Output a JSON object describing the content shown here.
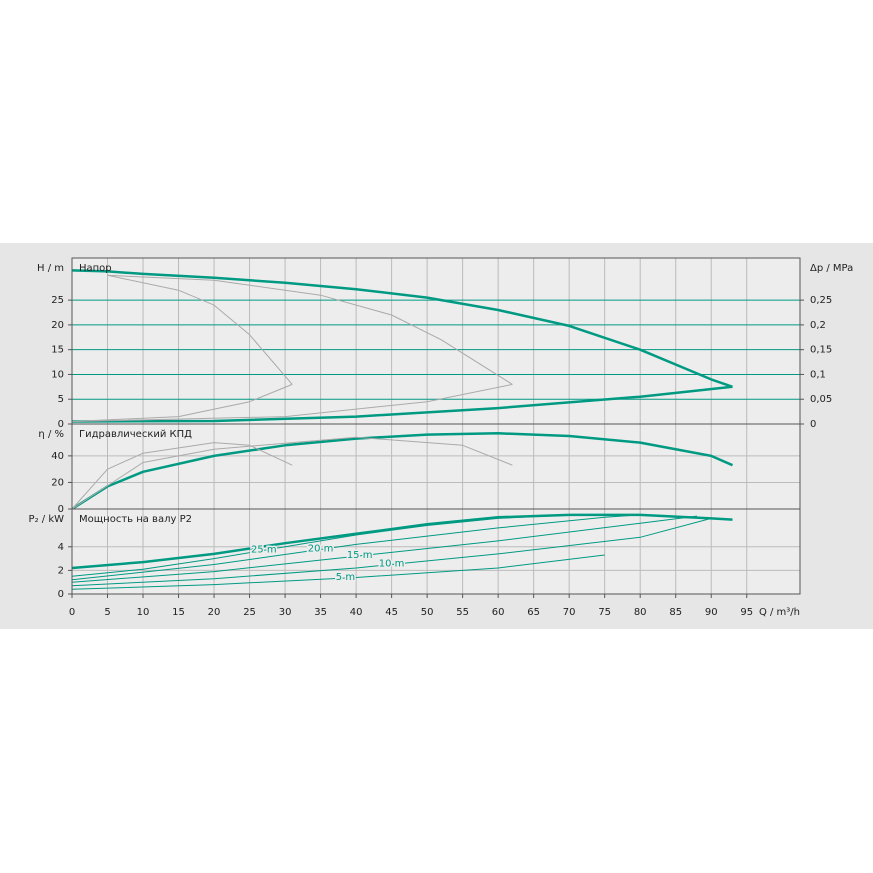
{
  "chart_data": [
    {
      "type": "line",
      "title": "Напор",
      "ylabel": "H / m",
      "y2label": "Δp / MPa",
      "xlim": [
        0,
        102.5
      ],
      "xticks": [
        0,
        5,
        10,
        15,
        20,
        25,
        30,
        35,
        40,
        45,
        50,
        55,
        60,
        65,
        70,
        75,
        80,
        85,
        90,
        95
      ],
      "ylim": [
        0,
        33.5
      ],
      "yticks": [
        0,
        5,
        10,
        15,
        20,
        25
      ],
      "y2lim": [
        0,
        0.335
      ],
      "y2ticks": [
        0,
        {
          "value": 0.05,
          "label": "0,05"
        },
        {
          "value": 0.1,
          "label": "0,1"
        },
        {
          "value": 0.15,
          "label": "0,15"
        },
        {
          "value": 0.2,
          "label": "0,2"
        },
        {
          "value": 0.25,
          "label": "0,25"
        }
      ],
      "grid": true,
      "grid_color": "#009a83",
      "series": [
        {
          "color": "#009a83",
          "width": 2.5,
          "x": [
            0,
            5,
            10,
            20,
            30,
            40,
            50,
            60,
            70,
            80,
            90,
            93
          ],
          "values": [
            31,
            30.8,
            30.3,
            29.5,
            28.5,
            27.2,
            25.5,
            23,
            19.8,
            15,
            9,
            7.5
          ]
        },
        {
          "color": "#009a83",
          "width": 2.5,
          "x": [
            0,
            20,
            40,
            60,
            80,
            93
          ],
          "values": [
            0.5,
            0.6,
            1.5,
            3.2,
            5.5,
            7.5
          ]
        },
        {
          "color": "#aaaaaa",
          "width": 1,
          "x": [
            5,
            15,
            20,
            25,
            31
          ],
          "values": [
            30,
            27,
            24,
            18,
            8
          ]
        },
        {
          "color": "#aaaaaa",
          "width": 1,
          "x": [
            0,
            15,
            25,
            31
          ],
          "values": [
            0.5,
            1.5,
            4.5,
            8
          ]
        },
        {
          "color": "#aaaaaa",
          "width": 1,
          "x": [
            5,
            20,
            35,
            45,
            52,
            62
          ],
          "values": [
            30,
            29,
            26,
            22,
            17,
            8
          ]
        },
        {
          "color": "#aaaaaa",
          "width": 1,
          "x": [
            0,
            30,
            50,
            62
          ],
          "values": [
            0.5,
            1.5,
            4.5,
            8
          ]
        }
      ]
    },
    {
      "type": "line",
      "title": "Гидравлический КПД",
      "ylabel": "η / %",
      "xlim": [
        0,
        102.5
      ],
      "xticks": [
        0,
        5,
        10,
        15,
        20,
        25,
        30,
        35,
        40,
        45,
        50,
        55,
        60,
        65,
        70,
        75,
        80,
        85,
        90,
        95
      ],
      "ylim": [
        0,
        64
      ],
      "yticks": [
        0,
        20,
        40
      ],
      "grid": true,
      "grid_color": "#bbbbbb",
      "series": [
        {
          "color": "#009a83",
          "width": 2.5,
          "x": [
            0,
            5,
            10,
            20,
            30,
            40,
            50,
            60,
            70,
            80,
            90,
            93
          ],
          "values": [
            0,
            17,
            28,
            40,
            48,
            53,
            56,
            57,
            55,
            50,
            40,
            33
          ]
        },
        {
          "color": "#aaaaaa",
          "width": 1,
          "x": [
            0,
            5,
            10,
            20,
            25,
            31
          ],
          "values": [
            0,
            30,
            42,
            50,
            48,
            33
          ]
        },
        {
          "color": "#aaaaaa",
          "width": 1,
          "x": [
            0,
            10,
            20,
            40,
            55,
            62
          ],
          "values": [
            0,
            35,
            45,
            54,
            48,
            33
          ]
        }
      ]
    },
    {
      "type": "line",
      "title": "Мощность на валу P2",
      "ylabel": "P₂ / kW",
      "xlabel": "Q / m³/h",
      "xlim": [
        0,
        102.5
      ],
      "xticks": [
        0,
        5,
        10,
        15,
        20,
        25,
        30,
        35,
        40,
        45,
        50,
        55,
        60,
        65,
        70,
        75,
        80,
        85,
        90,
        95
      ],
      "ylim": [
        0,
        7.2
      ],
      "yticks": [
        0,
        2,
        4
      ],
      "grid": true,
      "grid_color": "#bbbbbb",
      "series": [
        {
          "color": "#009a83",
          "width": 2.5,
          "x": [
            0,
            10,
            20,
            30,
            40,
            50,
            60,
            70,
            80,
            90,
            93
          ],
          "values": [
            2.2,
            2.7,
            3.4,
            4.3,
            5.1,
            5.9,
            6.5,
            6.7,
            6.7,
            6.4,
            6.3
          ]
        },
        {
          "name": "25 m",
          "color": "#009a83",
          "width": 1,
          "x": [
            0,
            10,
            20,
            30,
            40,
            50,
            60,
            70
          ],
          "values": [
            1.5,
            2.1,
            3,
            4,
            5,
            5.8,
            6.4,
            6.7
          ]
        },
        {
          "name": "20 m",
          "color": "#009a83",
          "width": 1,
          "x": [
            0,
            20,
            40,
            60,
            75,
            80
          ],
          "values": [
            1.2,
            2.5,
            4.2,
            5.6,
            6.5,
            6.7
          ]
        },
        {
          "name": "15 m",
          "color": "#009a83",
          "width": 1,
          "x": [
            0,
            20,
            40,
            60,
            80,
            88
          ],
          "values": [
            1,
            1.9,
            3.2,
            4.5,
            6,
            6.6
          ]
        },
        {
          "name": "10 m",
          "color": "#009a83",
          "width": 1,
          "x": [
            0,
            20,
            40,
            60,
            80,
            90
          ],
          "values": [
            0.7,
            1.3,
            2.2,
            3.4,
            4.8,
            6.4
          ]
        },
        {
          "name": "5 m",
          "color": "#009a83",
          "width": 1,
          "x": [
            0,
            20,
            40,
            60,
            75
          ],
          "values": [
            0.4,
            0.8,
            1.4,
            2.2,
            3.3
          ]
        }
      ]
    }
  ]
}
